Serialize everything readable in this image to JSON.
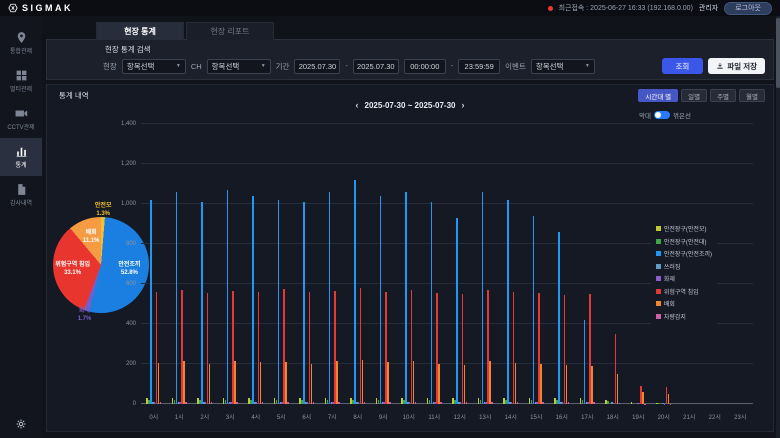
{
  "header": {
    "brand": "SIGMAK",
    "last_login": "최근접속 : 2025-06-27 16:33 (192.168.0.00)",
    "user": "관리자",
    "logout_label": "로그아웃"
  },
  "sidebar": {
    "items": [
      {
        "label": "통합관제",
        "icon": "map-pin-icon",
        "active": false
      },
      {
        "label": "멀티관제",
        "icon": "grid-icon",
        "active": false
      },
      {
        "label": "CCTV관제",
        "icon": "camera-icon",
        "active": false
      },
      {
        "label": "통계",
        "icon": "bar-chart-icon",
        "active": true
      },
      {
        "label": "감사내역",
        "icon": "document-icon",
        "active": false
      }
    ]
  },
  "tabs": [
    {
      "label": "현장 통계",
      "active": true
    },
    {
      "label": "현장 리포트",
      "active": false
    }
  ],
  "search": {
    "title": "현장 통계 검색",
    "site_label": "현장",
    "site_value": "항목선택",
    "channel_label": "CH",
    "channel_value": "항목선택",
    "period_label": "기간",
    "date_from": "2025.07.30",
    "date_to": "2025.07.30",
    "time_from": "00:00:00",
    "time_to": "23:59:59",
    "range_separator": "-",
    "event_label": "이벤트",
    "event_value": "항목선택",
    "search_button": "조회",
    "save_button": "파일 저장"
  },
  "stats": {
    "title": "통계 내역",
    "range_buttons": [
      {
        "label": "시간대 별",
        "active": true
      },
      {
        "label": "일별",
        "active": false
      },
      {
        "label": "주별",
        "active": false
      },
      {
        "label": "월별",
        "active": false
      }
    ],
    "date_nav": {
      "prev": "‹",
      "label": "2025-07-30  ~  2025-07-30",
      "next": "›"
    },
    "toggle": {
      "left": "막대",
      "right": "꺾은선",
      "state": "bar"
    }
  },
  "colors": {
    "accent_blue": "#3b57e8",
    "active_range_button": "#4656c4",
    "toggle_on": "#2979ff",
    "record_dot": "#e53935"
  },
  "chart_data": [
    {
      "type": "pie",
      "labels": [
        "안전모",
        "안전조끼",
        "화재",
        "위험구역 침입",
        "배회"
      ],
      "values": [
        1.3,
        52.8,
        1.7,
        33.1,
        11.1
      ],
      "colors": [
        "#f2c12e",
        "#1a7fe0",
        "#7b5cc4",
        "#e8352e",
        "#f59b42"
      ],
      "unit": "%"
    },
    {
      "type": "bar",
      "x": [
        "0시",
        "1시",
        "2시",
        "3시",
        "4시",
        "5시",
        "6시",
        "7시",
        "8시",
        "9시",
        "10시",
        "11시",
        "12시",
        "13시",
        "14시",
        "15시",
        "16시",
        "17시",
        "18시",
        "19시",
        "20시",
        "21시",
        "22시",
        "23시"
      ],
      "ylim": [
        0,
        1400
      ],
      "yticks": [
        0,
        200,
        400,
        600,
        800,
        1000,
        1200,
        1400
      ],
      "ytick_labels": [
        "0",
        "200",
        "400",
        "600",
        "800",
        "1,000",
        "1,200",
        "1,400"
      ],
      "grid": true,
      "legend_position": "right",
      "series": [
        {
          "name": "안전장구(안전모)",
          "color": "#c0ca33",
          "values": [
            30,
            30,
            30,
            30,
            30,
            30,
            30,
            30,
            30,
            30,
            30,
            30,
            30,
            30,
            30,
            30,
            30,
            30,
            20,
            8,
            6,
            0,
            0,
            0
          ]
        },
        {
          "name": "안전장구(안전대)",
          "color": "#3da649",
          "values": [
            22,
            22,
            22,
            22,
            22,
            22,
            22,
            22,
            22,
            22,
            22,
            22,
            22,
            22,
            22,
            22,
            22,
            22,
            15,
            6,
            5,
            0,
            0,
            0
          ]
        },
        {
          "name": "안전장구(안전조끼)",
          "color": "#2196f3",
          "values": [
            1020,
            1060,
            1010,
            1070,
            1040,
            1020,
            1010,
            1060,
            1120,
            1040,
            1060,
            1010,
            930,
            1060,
            1020,
            940,
            860,
            420,
            0,
            0,
            0,
            0,
            0,
            0
          ]
        },
        {
          "name": "쓰러짐",
          "color": "#5f9ccc",
          "values": [
            12,
            12,
            12,
            12,
            12,
            12,
            12,
            12,
            12,
            12,
            12,
            12,
            12,
            12,
            12,
            12,
            12,
            12,
            8,
            4,
            3,
            0,
            0,
            0
          ]
        },
        {
          "name": "화재",
          "color": "#8e5bd1",
          "values": [
            10,
            10,
            10,
            10,
            10,
            10,
            10,
            10,
            10,
            10,
            10,
            10,
            10,
            10,
            10,
            10,
            10,
            10,
            6,
            3,
            2,
            0,
            0,
            0
          ]
        },
        {
          "name": "위험구역 침입",
          "color": "#e53935",
          "values": [
            560,
            570,
            555,
            565,
            560,
            575,
            560,
            565,
            580,
            560,
            570,
            555,
            550,
            570,
            560,
            555,
            545,
            550,
            350,
            90,
            85,
            0,
            0,
            0
          ]
        },
        {
          "name": "배회",
          "color": "#f0872e",
          "values": [
            205,
            215,
            200,
            215,
            210,
            210,
            200,
            215,
            220,
            210,
            215,
            200,
            195,
            215,
            205,
            200,
            195,
            190,
            150,
            60,
            50,
            0,
            0,
            0
          ]
        },
        {
          "name": "차량감지",
          "color": "#cf5fa6",
          "values": [
            8,
            8,
            8,
            8,
            8,
            8,
            8,
            8,
            8,
            8,
            8,
            8,
            8,
            8,
            8,
            8,
            8,
            8,
            5,
            2,
            2,
            0,
            0,
            0
          ]
        }
      ]
    }
  ]
}
